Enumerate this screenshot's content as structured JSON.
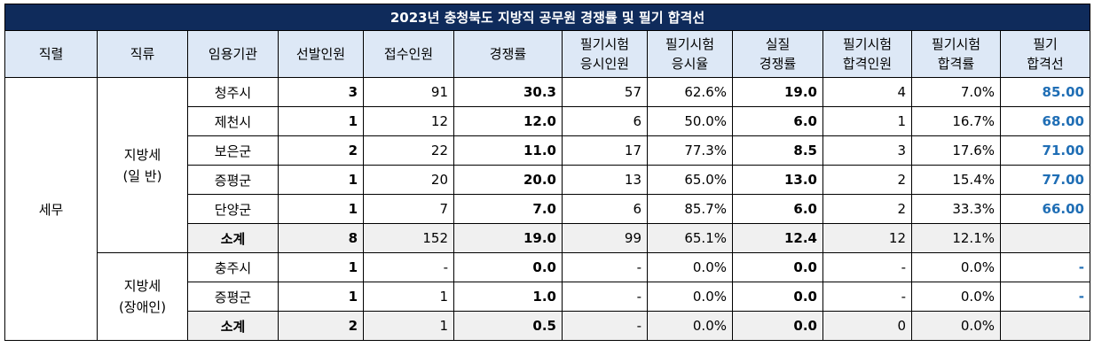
{
  "title": "2023년 충청북도 지방직 공무원 경쟁률 및 필기 합격선",
  "headers": {
    "h1": "직렬",
    "h2": "직류",
    "h3": "임용기관",
    "h4": "선발인원",
    "h5": "접수인원",
    "h6": "경쟁률",
    "h7a": "필기시험",
    "h7b": "응시인원",
    "h8a": "필기시험",
    "h8b": "응시율",
    "h9a": "실질",
    "h9b": "경쟁률",
    "h10a": "필기시험",
    "h10b": "합격인원",
    "h11a": "필기시험",
    "h11b": "합격률",
    "h12a": "필기",
    "h12b": "합격선"
  },
  "jiklyeol": "세무",
  "groups": [
    {
      "jikryu_line1": "지방세",
      "jikryu_line2": "(일 반)",
      "rows": [
        {
          "agency": "청주시",
          "select": "3",
          "apply": "91",
          "ratio": "30.3",
          "test": "57",
          "test_rate": "62.6%",
          "real_ratio": "19.0",
          "pass": "4",
          "pass_rate": "7.0%",
          "cutoff": "85.00"
        },
        {
          "agency": "제천시",
          "select": "1",
          "apply": "12",
          "ratio": "12.0",
          "test": "6",
          "test_rate": "50.0%",
          "real_ratio": "6.0",
          "pass": "1",
          "pass_rate": "16.7%",
          "cutoff": "68.00"
        },
        {
          "agency": "보은군",
          "select": "2",
          "apply": "22",
          "ratio": "11.0",
          "test": "17",
          "test_rate": "77.3%",
          "real_ratio": "8.5",
          "pass": "3",
          "pass_rate": "17.6%",
          "cutoff": "71.00"
        },
        {
          "agency": "증평군",
          "select": "1",
          "apply": "20",
          "ratio": "20.0",
          "test": "13",
          "test_rate": "65.0%",
          "real_ratio": "13.0",
          "pass": "2",
          "pass_rate": "15.4%",
          "cutoff": "77.00"
        },
        {
          "agency": "단양군",
          "select": "1",
          "apply": "7",
          "ratio": "7.0",
          "test": "6",
          "test_rate": "85.7%",
          "real_ratio": "6.0",
          "pass": "2",
          "pass_rate": "33.3%",
          "cutoff": "66.00"
        }
      ],
      "subtotal": {
        "agency": "소계",
        "select": "8",
        "apply": "152",
        "ratio": "19.0",
        "test": "99",
        "test_rate": "65.1%",
        "real_ratio": "12.4",
        "pass": "12",
        "pass_rate": "12.1%",
        "cutoff": ""
      }
    },
    {
      "jikryu_line1": "지방세",
      "jikryu_line2": "(장애인)",
      "rows": [
        {
          "agency": "충주시",
          "select": "1",
          "apply": "-",
          "ratio": "0.0",
          "test": "-",
          "test_rate": "0.0%",
          "real_ratio": "0.0",
          "pass": "-",
          "pass_rate": "0.0%",
          "cutoff": "-"
        },
        {
          "agency": "증평군",
          "select": "1",
          "apply": "1",
          "ratio": "1.0",
          "test": "-",
          "test_rate": "0.0%",
          "real_ratio": "0.0",
          "pass": "-",
          "pass_rate": "0.0%",
          "cutoff": "-"
        }
      ],
      "subtotal": {
        "agency": "소계",
        "select": "2",
        "apply": "1",
        "ratio": "0.5",
        "test": "-",
        "test_rate": "0.0%",
        "real_ratio": "0.0",
        "pass": "0",
        "pass_rate": "0.0%",
        "cutoff": ""
      }
    }
  ]
}
